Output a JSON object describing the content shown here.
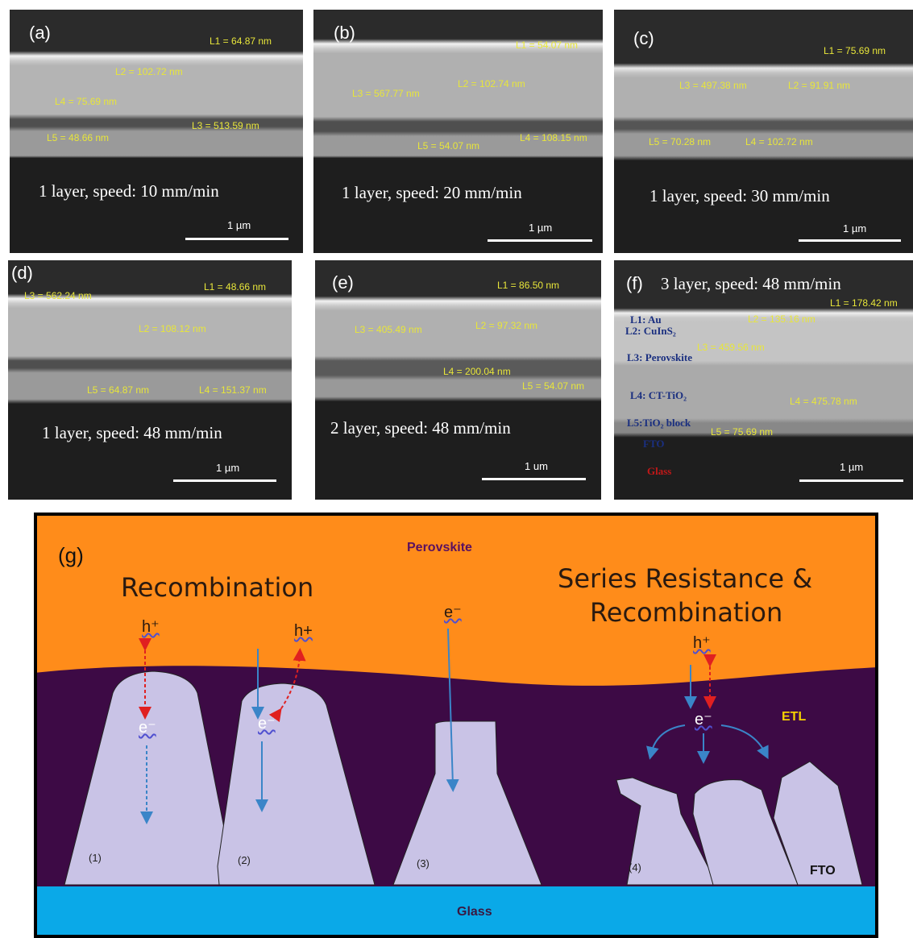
{
  "sem_panels": [
    {
      "label": "(a)",
      "measurements": [
        "L1 = 64.87 nm",
        "L2 = 102.72 nm",
        "L4 = 75.69 nm",
        "L3 = 513.59 nm",
        "L5 = 48.66 nm"
      ],
      "caption": "1 layer, speed: 10 mm/min",
      "scale": "1 µm"
    },
    {
      "label": "(b)",
      "measurements": [
        "L1 = 54.07 nm",
        "L3 = 567.77 nm",
        "L2 = 102.74 nm",
        "L5 = 54.07 nm",
        "L4 = 108.15 nm"
      ],
      "caption": "1 layer, speed: 20 mm/min",
      "scale": "1 µm"
    },
    {
      "label": "(c)",
      "measurements": [
        "L1 = 75.69 nm",
        "L3 = 497.38 nm",
        "L2 = 91.91 nm",
        "L5 = 70.28 nm",
        "L4 = 102.72 nm"
      ],
      "caption": "1 layer, speed: 30 mm/min",
      "scale": "1 µm"
    },
    {
      "label": "(d)",
      "measurements": [
        "L3 = 562.24 nm",
        "L1 = 48.66 nm",
        "L2 = 108.12 nm",
        "L5 = 64.87 nm",
        "L4 = 151.37 nm"
      ],
      "caption": "1 layer, speed: 48 mm/min",
      "scale": "1 µm"
    },
    {
      "label": "(e)",
      "measurements": [
        "L1 = 86.50 nm",
        "L3 = 405.49 nm",
        "L2 = 97.32 nm",
        "L4 = 200.04 nm",
        "L5 = 54.07 nm"
      ],
      "caption": "2 layer, speed: 48 mm/min",
      "scale": "1 um"
    },
    {
      "label": "(f)",
      "measurements": [
        "L1 = 178.42 nm",
        "L2 = 135.16 nm",
        "L3 = 459.56 nm",
        "L4 = 475.78 nm",
        "L5 = 75.69 nm"
      ],
      "caption": "3 layer, speed: 48 mm/min",
      "scale": "1 µm",
      "layer_legend": [
        "L1: Au",
        "L2: CuInS₂",
        "L3: Perovskite",
        "L4: CT-TiO₂",
        "L5:TiO₂ block",
        "FTO",
        "Glass"
      ]
    }
  ],
  "diagram": {
    "label": "(g)",
    "layers": [
      "Perovskite",
      "ETL",
      "FTO",
      "Glass"
    ],
    "headings": [
      "Recombination",
      "Series Resistance &",
      "Recombination"
    ],
    "charges": [
      "h⁺",
      "h+",
      "e⁻",
      "h⁺",
      "e⁻",
      "e⁻",
      "e⁻"
    ],
    "grains": [
      "(1)",
      "(2)",
      "(3)",
      "(4)"
    ]
  }
}
